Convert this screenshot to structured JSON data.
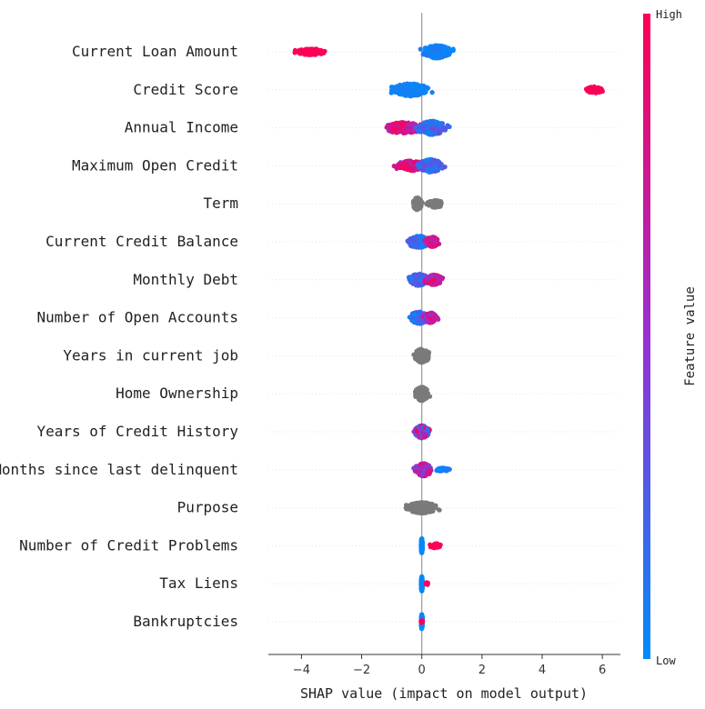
{
  "chart_data": {
    "type": "scatter",
    "subtype": "shap-beeswarm",
    "title": "",
    "xlabel": "SHAP value (impact on model output)",
    "ylabel": "",
    "xlim": [
      -5.1,
      6.6
    ],
    "xticks": [
      -4,
      -2,
      0,
      2,
      4,
      6
    ],
    "grid": false,
    "colorbar": {
      "label": "Feature value",
      "high_label": "High",
      "low_label": "Low",
      "high_color": "#ff0052",
      "low_color": "#008bfb"
    },
    "no_value_color": "#7a7a7a",
    "features": [
      {
        "name": "Current Loan Amount",
        "categorical": false,
        "clusters": [
          {
            "center": -3.7,
            "spread": 0.45,
            "height": 7,
            "count": 110,
            "value_mix": [
              0.95,
              1.0
            ]
          },
          {
            "center": 0.5,
            "spread": 0.45,
            "height": 14,
            "count": 260,
            "value_mix": [
              0.0,
              0.12
            ]
          }
        ]
      },
      {
        "name": "Credit Score",
        "categorical": false,
        "clusters": [
          {
            "center": -0.4,
            "spread": 0.55,
            "height": 14,
            "count": 300,
            "value_mix": [
              0.0,
              0.1
            ]
          },
          {
            "center": 5.75,
            "spread": 0.28,
            "height": 7,
            "count": 80,
            "value_mix": [
              0.95,
              1.0
            ]
          }
        ]
      },
      {
        "name": "Annual Income",
        "categorical": false,
        "clusters": [
          {
            "center": -0.6,
            "spread": 0.6,
            "height": 12,
            "count": 200,
            "value_mix": [
              0.55,
              1.0
            ]
          },
          {
            "center": 0.35,
            "spread": 0.45,
            "height": 15,
            "count": 220,
            "value_mix": [
              0.0,
              0.4
            ]
          }
        ]
      },
      {
        "name": "Maximum Open Credit",
        "categorical": false,
        "clusters": [
          {
            "center": -0.35,
            "spread": 0.5,
            "height": 11,
            "count": 180,
            "value_mix": [
              0.55,
              1.0
            ]
          },
          {
            "center": 0.3,
            "spread": 0.4,
            "height": 14,
            "count": 220,
            "value_mix": [
              0.0,
              0.4
            ]
          }
        ]
      },
      {
        "name": "Term",
        "categorical": true,
        "clusters": [
          {
            "center": -0.15,
            "spread": 0.12,
            "height": 14,
            "count": 180,
            "value_mix": [
              0.5,
              0.5
            ]
          },
          {
            "center": 0.45,
            "spread": 0.25,
            "height": 8,
            "count": 120,
            "value_mix": [
              0.5,
              0.5
            ]
          }
        ]
      },
      {
        "name": "Current Credit Balance",
        "categorical": false,
        "clusters": [
          {
            "center": -0.1,
            "spread": 0.35,
            "height": 13,
            "count": 220,
            "value_mix": [
              0.0,
              0.35
            ]
          },
          {
            "center": 0.35,
            "spread": 0.2,
            "height": 11,
            "count": 160,
            "value_mix": [
              0.5,
              1.0
            ]
          }
        ]
      },
      {
        "name": "Monthly Debt",
        "categorical": false,
        "clusters": [
          {
            "center": -0.1,
            "spread": 0.3,
            "height": 13,
            "count": 200,
            "value_mix": [
              0.0,
              0.35
            ]
          },
          {
            "center": 0.4,
            "spread": 0.25,
            "height": 11,
            "count": 180,
            "value_mix": [
              0.5,
              1.0
            ]
          }
        ]
      },
      {
        "name": "Number of Open Accounts",
        "categorical": false,
        "clusters": [
          {
            "center": -0.1,
            "spread": 0.3,
            "height": 13,
            "count": 200,
            "value_mix": [
              0.0,
              0.35
            ]
          },
          {
            "center": 0.3,
            "spread": 0.2,
            "height": 11,
            "count": 170,
            "value_mix": [
              0.45,
              1.0
            ]
          }
        ]
      },
      {
        "name": "Years in current job",
        "categorical": true,
        "clusters": [
          {
            "center": 0.0,
            "spread": 0.22,
            "height": 15,
            "count": 280,
            "value_mix": [
              0.5,
              0.5
            ]
          }
        ]
      },
      {
        "name": "Home Ownership",
        "categorical": true,
        "clusters": [
          {
            "center": 0.0,
            "spread": 0.2,
            "height": 15,
            "count": 260,
            "value_mix": [
              0.5,
              0.5
            ]
          }
        ]
      },
      {
        "name": "Years of Credit History",
        "categorical": false,
        "clusters": [
          {
            "center": 0.0,
            "spread": 0.22,
            "height": 14,
            "count": 240,
            "value_mix": [
              0.0,
              1.0
            ]
          }
        ]
      },
      {
        "name": "Months since last delinquent",
        "categorical": false,
        "clusters": [
          {
            "center": 0.05,
            "spread": 0.25,
            "height": 14,
            "count": 220,
            "value_mix": [
              0.3,
              1.0
            ]
          },
          {
            "center": 0.7,
            "spread": 0.2,
            "height": 4,
            "count": 30,
            "value_mix": [
              0.0,
              0.1
            ]
          }
        ]
      },
      {
        "name": "Purpose",
        "categorical": true,
        "clusters": [
          {
            "center": 0.0,
            "spread": 0.45,
            "height": 12,
            "count": 280,
            "value_mix": [
              0.5,
              0.5
            ]
          }
        ]
      },
      {
        "name": "Number of Credit Problems",
        "categorical": false,
        "clusters": [
          {
            "center": 0.0,
            "spread": 0.02,
            "height": 16,
            "count": 200,
            "value_mix": [
              0.0,
              0.05
            ]
          },
          {
            "center": 0.45,
            "spread": 0.18,
            "height": 5,
            "count": 40,
            "value_mix": [
              0.95,
              1.0
            ]
          }
        ]
      },
      {
        "name": "Tax Liens",
        "categorical": false,
        "clusters": [
          {
            "center": 0.0,
            "spread": 0.02,
            "height": 16,
            "count": 180,
            "value_mix": [
              0.0,
              0.05
            ]
          },
          {
            "center": 0.18,
            "spread": 0.05,
            "height": 3,
            "count": 8,
            "value_mix": [
              0.95,
              1.0
            ]
          }
        ]
      },
      {
        "name": "Bankruptcies",
        "categorical": false,
        "clusters": [
          {
            "center": 0.0,
            "spread": 0.02,
            "height": 16,
            "count": 180,
            "value_mix": [
              0.0,
              0.05
            ]
          },
          {
            "center": 0.0,
            "spread": 0.03,
            "height": 3,
            "count": 10,
            "value_mix": [
              0.95,
              1.0
            ]
          }
        ]
      }
    ]
  }
}
